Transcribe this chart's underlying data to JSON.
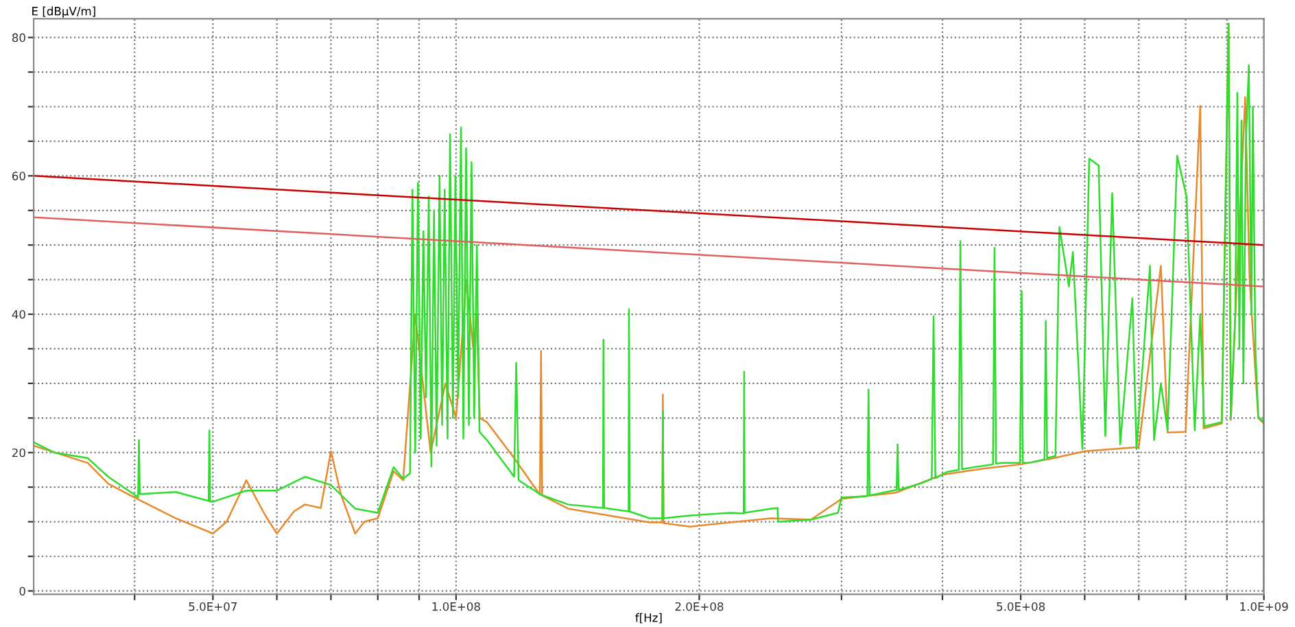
{
  "chart_data": {
    "type": "line",
    "xlabel": "f[Hz]",
    "ylabel": "E [dBµV/m]",
    "log": "x",
    "grid": true,
    "marker": "none",
    "line_style": "solid",
    "xlim": [
      30000000.0,
      1000000000.0
    ],
    "ylim": [
      -0.5,
      82.7
    ],
    "xticks": [
      {
        "value": 40000000.0,
        "label": null
      },
      {
        "value": 50000000.0,
        "label": "5.0E+07"
      },
      {
        "value": 60000000.0,
        "label": null
      },
      {
        "value": 70000000.0,
        "label": null
      },
      {
        "value": 80000000.0,
        "label": null
      },
      {
        "value": 90000000.0,
        "label": null
      },
      {
        "value": 100000000.0,
        "label": "1.0E+08"
      },
      {
        "value": 200000000.0,
        "label": "2.0E+08"
      },
      {
        "value": 300000000.0,
        "label": null
      },
      {
        "value": 400000000.0,
        "label": null
      },
      {
        "value": 500000000.0,
        "label": "5.0E+08"
      },
      {
        "value": 600000000.0,
        "label": null
      },
      {
        "value": 700000000.0,
        "label": null
      },
      {
        "value": 800000000.0,
        "label": null
      },
      {
        "value": 900000000.0,
        "label": null
      },
      {
        "value": 1000000000.0,
        "label": "1.0E+09"
      }
    ],
    "yticks": [
      0,
      {
        "value": 5,
        "label": null
      },
      {
        "value": 10,
        "label": null
      },
      {
        "value": 15,
        "label": null
      },
      20,
      {
        "value": 25,
        "label": null
      },
      {
        "value": 30,
        "label": null
      },
      {
        "value": 35,
        "label": null
      },
      40,
      {
        "value": 45,
        "label": null
      },
      {
        "value": 50,
        "label": null
      },
      {
        "value": 55,
        "label": null
      },
      60,
      {
        "value": 65,
        "label": null
      },
      {
        "value": 70,
        "label": null
      },
      {
        "value": 75,
        "label": null
      },
      80
    ],
    "series": [
      {
        "color": "#e8892c",
        "x": [
          30000000.0,
          35000000.0,
          37100000.0,
          40000000.0,
          45000000.0,
          50000000.0,
          52000000.0,
          55000000.0,
          58000000.0,
          60000000.0,
          63000000.0,
          65000000.0,
          68000000.0,
          70000000.0,
          72000000.0,
          75000000.0,
          77000000.0,
          80000000.0,
          83700000.0,
          86000000.0,
          89000000.0,
          93000000.0,
          97000000.0,
          100000000.0,
          103000000.0,
          105000000.0,
          106000000.0,
          107000000.0,
          109200000.0,
          118000000.0,
          127000000.0,
          127400000.0,
          127800000.0,
          137600000.0,
          154600000.0,
          173500000.0,
          180000000.0,
          180300000.0,
          180600000.0,
          194800000.0,
          218700000.0,
          245500000.0,
          275000000.0,
          300000000.0,
          350000000.0,
          400000000.0,
          450000000.0,
          500000000.0,
          550000000.0,
          600000000.0,
          700000000.0,
          745500000.0,
          760000000.0,
          800000000.0,
          834000000.0,
          842000000.0,
          886800000.0,
          904200000.0,
          910000000.0,
          930000000.0,
          948000000.0,
          960000000.0,
          984000000.0,
          1000000000.0
        ],
        "values": [
          21,
          18.5,
          15.5,
          13.5,
          10.5,
          8.3,
          10,
          16,
          11,
          8.3,
          11.5,
          12.5,
          12,
          20.2,
          14,
          8.3,
          10,
          10.5,
          17.3,
          16,
          40,
          20,
          30,
          25,
          45,
          35,
          40,
          25,
          24.4,
          19.2,
          13.9,
          34.7,
          13.8,
          11.9,
          10.9,
          9.9,
          9.9,
          28.4,
          9.8,
          9.3,
          9.9,
          10.5,
          10.3,
          13.3,
          14.2,
          16.8,
          17.7,
          18.3,
          19.2,
          20.2,
          20.8,
          47,
          22.9,
          23,
          70.1,
          23.5,
          24.2,
          82,
          24.7,
          50,
          71.4,
          45,
          25,
          24.2
        ]
      },
      {
        "color": "#2edc2e",
        "x": [
          30000000.0,
          31800000.0,
          35000000.0,
          37100000.0,
          40000000.0,
          40400000.0,
          40500000.0,
          40600000.0,
          45000000.0,
          49400000.0,
          49500000.0,
          49600000.0,
          50000000.0,
          55000000.0,
          60000000.0,
          65000000.0,
          70000000.0,
          75000000.0,
          80000000.0,
          83700000.0,
          86000000.0,
          87700000.0,
          88300000.0,
          89000000.0,
          89700000.0,
          90400000.0,
          91100000.0,
          91800000.0,
          92500000.0,
          93200000.0,
          93900000.0,
          94600000.0,
          95400000.0,
          96100000.0,
          96800000.0,
          97600000.0,
          98300000.0,
          99100000.0,
          99800000.0,
          100600000.0,
          101400000.0,
          102100000.0,
          102900000.0,
          103700000.0,
          104500000.0,
          105300000.0,
          106100000.0,
          106900000.0,
          109200000.0,
          118000000.0,
          118700000.0,
          119500000.0,
          127400000.0,
          137600000.0,
          152000000.0,
          152200000.0,
          152500000.0,
          154600000.0,
          163500000.0,
          163700000.0,
          164000000.0,
          173500000.0,
          180000000.0,
          180300000.0,
          180600000.0,
          194800000.0,
          218700000.0,
          227000000.0,
          227300000.0,
          227600000.0,
          245500000.0,
          250000000.0,
          250300000.0,
          275000000.0,
          297000000.0,
          300000000.0,
          323000000.0,
          324000000.0,
          325000000.0,
          347300000.0,
          351000000.0,
          352000000.0,
          353000000.0,
          375200000.0,
          388000000.0,
          390000000.0,
          392000000.0,
          405300000.0,
          419000000.0,
          421000000.0,
          423000000.0,
          437800000.0,
          462000000.0,
          464000000.0,
          466000000.0,
          472800000.0,
          499000000.0,
          501300000.0,
          503000000.0,
          510900000.0,
          535000000.0,
          537000000.0,
          539000000.0,
          552000000.0,
          558300000.0,
          573600000.0,
          580200000.0,
          596100000.0,
          607800000.0,
          624300000.0,
          636300000.0,
          648900000.0,
          663900000.0,
          687300000.0,
          695400000.0,
          722700000.0,
          731100000.0,
          745500000.0,
          759900000.0,
          780900000.0,
          802200000.0,
          821100000.0,
          834000000.0,
          843600000.0,
          886800000.0,
          904200000.0,
          910000000.0,
          921600000.0,
          927000000.0,
          932400000.0,
          938000000.0,
          943200000.0,
          950000000.0,
          957900000.0,
          965000000.0,
          969000000.0,
          976000000.0,
          984000000.0,
          991500000.0,
          1000000000.0
        ],
        "values": [
          21.5,
          20,
          19.2,
          16.5,
          13.9,
          13.5,
          21.8,
          14,
          14.3,
          13,
          23.2,
          12.9,
          12.9,
          14.5,
          14.5,
          16.5,
          15.3,
          11.9,
          11.3,
          17.9,
          16.2,
          17,
          58,
          20,
          59,
          22,
          52,
          28,
          57,
          18,
          55,
          21,
          60,
          24,
          58,
          22,
          66,
          25,
          60,
          28,
          67,
          22,
          64,
          24,
          62,
          25,
          50,
          23,
          21.8,
          16.5,
          33,
          16,
          13.9,
          12.5,
          12,
          36.3,
          12,
          11.9,
          11.5,
          40.7,
          11.5,
          10.5,
          10.5,
          26,
          10.5,
          10.9,
          11.3,
          11.2,
          31.7,
          11.3,
          11.9,
          12,
          10,
          10.3,
          11.3,
          13.5,
          13.7,
          29.1,
          13.8,
          14.5,
          14.6,
          21.2,
          14.6,
          15.5,
          16.2,
          39.7,
          16.3,
          17.2,
          17.5,
          50.6,
          17.6,
          17.9,
          18.3,
          49.6,
          18.4,
          18.5,
          18.5,
          43.3,
          18.5,
          18.5,
          19,
          39,
          19.2,
          19.5,
          52.6,
          44,
          49,
          20.5,
          62.5,
          61.5,
          22.4,
          57.5,
          21.2,
          42.3,
          20.5,
          47,
          21.8,
          30,
          23.2,
          62.9,
          57,
          23.2,
          40,
          23.8,
          24.4,
          82,
          25,
          40,
          72,
          35,
          68,
          30,
          65,
          76,
          40,
          70,
          35,
          25.2,
          24.8,
          24.4
        ]
      },
      {
        "color": "#e06060",
        "x": [
          30000000.0,
          1000000000.0
        ],
        "values": [
          54,
          44
        ]
      },
      {
        "color": "#cc0000",
        "x": [
          30000000.0,
          1000000000.0,
          1000000000.0
        ],
        "values": [
          60,
          50,
          0
        ]
      }
    ]
  }
}
